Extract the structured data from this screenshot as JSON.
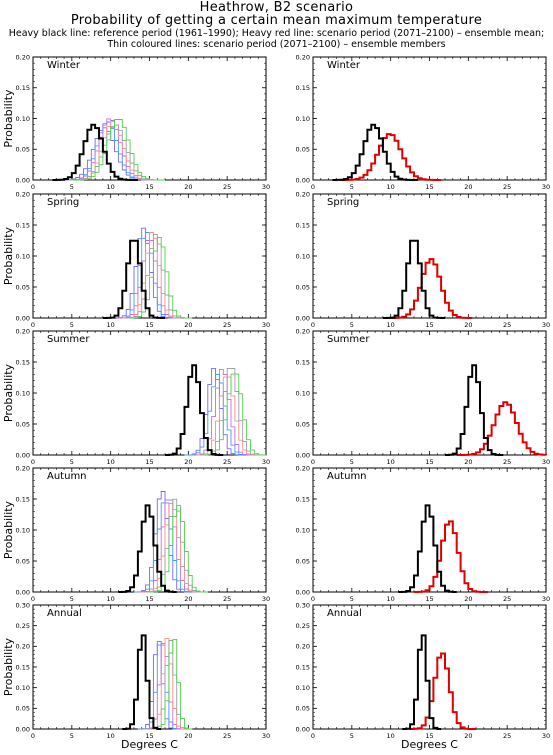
{
  "header": {
    "title": "Heathrow, B2 scenario",
    "subtitle": "Probability of getting a certain mean maximum temperature",
    "legend_line1": "Heavy black line: reference period (1961–1990); Heavy red line: scenario period (2071–2100) – ensemble mean;",
    "legend_line2": "Thin coloured lines: scenario period (2071–2100) – ensemble members"
  },
  "colors": {
    "reference": "#000000",
    "ensemble_mean": "#e00000",
    "members": [
      "#7b68ee",
      "#3aa0ff",
      "#c070e0",
      "#ff8c8c",
      "#a0a0a0",
      "#50d050"
    ]
  },
  "chart_data": {
    "type": "line",
    "style": "step",
    "xlabel": "Degrees C",
    "ylabel": "Probability",
    "xlim": [
      0,
      30
    ],
    "xticks": [
      0,
      5,
      10,
      15,
      20,
      25,
      30
    ],
    "grid": false,
    "panels": [
      {
        "season": "Winter",
        "ylim": [
          0,
          0.2
        ],
        "yticks": [
          0.0,
          0.05,
          0.1,
          0.15,
          0.2
        ],
        "reference": {
          "mean": 7.8,
          "sd": 1.25,
          "peak": 0.09
        },
        "ensemble_mean": {
          "mean": 9.9,
          "sd": 1.5,
          "peak": 0.075
        },
        "members": [
          {
            "mean": 9.2,
            "sd": 1.4,
            "peak": 0.085
          },
          {
            "mean": 9.6,
            "sd": 1.3,
            "peak": 0.095
          },
          {
            "mean": 9.9,
            "sd": 1.35,
            "peak": 0.1
          },
          {
            "mean": 10.3,
            "sd": 1.3,
            "peak": 0.095
          },
          {
            "mean": 10.6,
            "sd": 1.4,
            "peak": 0.09
          },
          {
            "mean": 11.0,
            "sd": 1.35,
            "peak": 0.1
          }
        ]
      },
      {
        "season": "Spring",
        "ylim": [
          0,
          0.2
        ],
        "yticks": [
          0.0,
          0.05,
          0.1,
          0.15,
          0.2
        ],
        "reference": {
          "mean": 13.0,
          "sd": 0.85,
          "peak": 0.13
        },
        "ensemble_mean": {
          "mean": 15.2,
          "sd": 1.25,
          "peak": 0.095
        },
        "members": [
          {
            "mean": 14.2,
            "sd": 0.9,
            "peak": 0.145
          },
          {
            "mean": 14.6,
            "sd": 0.85,
            "peak": 0.14
          },
          {
            "mean": 15.0,
            "sd": 0.9,
            "peak": 0.13
          },
          {
            "mean": 15.4,
            "sd": 0.85,
            "peak": 0.14
          },
          {
            "mean": 15.8,
            "sd": 0.9,
            "peak": 0.135
          },
          {
            "mean": 16.3,
            "sd": 0.9,
            "peak": 0.13
          }
        ]
      },
      {
        "season": "Summer",
        "ylim": [
          0,
          0.2
        ],
        "yticks": [
          0.0,
          0.05,
          0.1,
          0.15,
          0.2
        ],
        "reference": {
          "mean": 20.7,
          "sd": 0.85,
          "peak": 0.145
        },
        "ensemble_mean": {
          "mean": 24.8,
          "sd": 1.45,
          "peak": 0.085
        },
        "members": [
          {
            "mean": 23.3,
            "sd": 0.85,
            "peak": 0.14
          },
          {
            "mean": 23.8,
            "sd": 0.95,
            "peak": 0.13
          },
          {
            "mean": 24.4,
            "sd": 0.9,
            "peak": 0.14
          },
          {
            "mean": 25.0,
            "sd": 0.95,
            "peak": 0.13
          },
          {
            "mean": 25.5,
            "sd": 0.9,
            "peak": 0.145
          },
          {
            "mean": 26.0,
            "sd": 0.95,
            "peak": 0.135
          }
        ]
      },
      {
        "season": "Autumn",
        "ylim": [
          0,
          0.2
        ],
        "yticks": [
          0.0,
          0.05,
          0.1,
          0.15,
          0.2
        ],
        "reference": {
          "mean": 14.8,
          "sd": 0.85,
          "peak": 0.14
        },
        "ensemble_mean": {
          "mean": 17.6,
          "sd": 1.05,
          "peak": 0.115
        },
        "members": [
          {
            "mean": 16.6,
            "sd": 0.8,
            "peak": 0.165
          },
          {
            "mean": 17.0,
            "sd": 0.85,
            "peak": 0.15
          },
          {
            "mean": 17.5,
            "sd": 0.85,
            "peak": 0.155
          },
          {
            "mean": 17.9,
            "sd": 0.85,
            "peak": 0.145
          },
          {
            "mean": 18.3,
            "sd": 0.85,
            "peak": 0.15
          },
          {
            "mean": 18.7,
            "sd": 0.85,
            "peak": 0.14
          }
        ]
      },
      {
        "season": "Annual",
        "ylim": [
          0,
          0.3
        ],
        "yticks": [
          0.0,
          0.05,
          0.1,
          0.15,
          0.2,
          0.25,
          0.3
        ],
        "reference": {
          "mean": 14.1,
          "sd": 0.55,
          "peak": 0.235
        },
        "ensemble_mean": {
          "mean": 16.6,
          "sd": 0.95,
          "peak": 0.185
        },
        "members": [
          {
            "mean": 16.1,
            "sd": 0.55,
            "peak": 0.22
          },
          {
            "mean": 16.5,
            "sd": 0.55,
            "peak": 0.225
          },
          {
            "mean": 16.9,
            "sd": 0.55,
            "peak": 0.215
          },
          {
            "mean": 17.3,
            "sd": 0.55,
            "peak": 0.22
          },
          {
            "mean": 17.7,
            "sd": 0.55,
            "peak": 0.215
          },
          {
            "mean": 18.1,
            "sd": 0.55,
            "peak": 0.225
          }
        ]
      }
    ]
  }
}
